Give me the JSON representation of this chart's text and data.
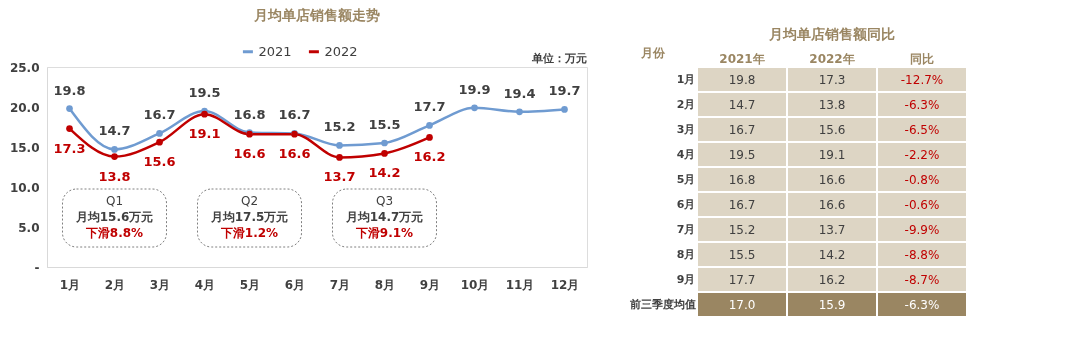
{
  "chart_data": [
    {
      "type": "line",
      "title": "月均单店销售额走势",
      "categories": [
        "1月",
        "2月",
        "3月",
        "4月",
        "5月",
        "6月",
        "7月",
        "8月",
        "9月",
        "10月",
        "11月",
        "12月"
      ],
      "series": [
        {
          "name": "2021",
          "color": "#6f9bd1",
          "values": [
            19.8,
            14.7,
            16.7,
            19.5,
            16.8,
            16.7,
            15.2,
            15.5,
            17.7,
            19.9,
            19.4,
            19.7
          ]
        },
        {
          "name": "2022",
          "color": "#c00000",
          "values": [
            17.3,
            13.8,
            15.6,
            19.1,
            16.6,
            16.6,
            13.7,
            14.2,
            16.2,
            null,
            null,
            null
          ]
        }
      ],
      "ylim": [
        0,
        25
      ],
      "yticks": [
        {
          "value": 0,
          "label": "-"
        },
        {
          "value": 5,
          "label": "5.0"
        },
        {
          "value": 10,
          "label": "10.0"
        },
        {
          "value": 15,
          "label": "15.0"
        },
        {
          "value": 20,
          "label": "20.0"
        },
        {
          "value": 25,
          "label": "25.0"
        }
      ],
      "grid": false,
      "legend": "top",
      "marker": "circle",
      "line_style": "solid",
      "data_labels": true,
      "annotations": [
        "单位：万元",
        "Q1",
        "月均15.6万元",
        "下滑8.8%",
        "Q2",
        "月均17.5万元",
        "下滑1.2%",
        "Q3",
        "月均14.7万元",
        "下滑9.1%"
      ]
    },
    {
      "type": "heatmap",
      "title": "月均单店销售额同比",
      "ylabel": "月份",
      "categories": [
        "2021年",
        "2022年",
        "同比"
      ],
      "y_categories": [
        "1月",
        "2月",
        "3月",
        "4月",
        "5月",
        "6月",
        "7月",
        "8月",
        "9月",
        "前三季度均值"
      ],
      "cells": [
        [
          19.8,
          17.3,
          -12.7
        ],
        [
          14.7,
          13.8,
          -6.3
        ],
        [
          16.7,
          15.6,
          -6.5
        ],
        [
          19.5,
          19.1,
          -2.2
        ],
        [
          16.8,
          16.6,
          -0.8
        ],
        [
          16.7,
          16.6,
          -0.6
        ],
        [
          15.2,
          13.7,
          -9.9
        ],
        [
          15.5,
          14.2,
          -8.8
        ],
        [
          17.7,
          16.2,
          -8.7
        ],
        [
          17.0,
          15.9,
          -6.3
        ]
      ],
      "cell_labels": [
        [
          "19.8",
          "17.3",
          "-12.7%"
        ],
        [
          "14.7",
          "13.8",
          "-6.3%"
        ],
        [
          "16.7",
          "15.6",
          "-6.5%"
        ],
        [
          "19.5",
          "19.1",
          "-2.2%"
        ],
        [
          "16.8",
          "16.6",
          "-0.8%"
        ],
        [
          "16.7",
          "16.6",
          "-0.6%"
        ],
        [
          "15.2",
          "13.7",
          "-9.9%"
        ],
        [
          "15.5",
          "14.2",
          "-8.8%"
        ],
        [
          "17.7",
          "16.2",
          "-8.7%"
        ],
        [
          "17.0",
          "15.9",
          "-6.3%"
        ]
      ]
    }
  ]
}
